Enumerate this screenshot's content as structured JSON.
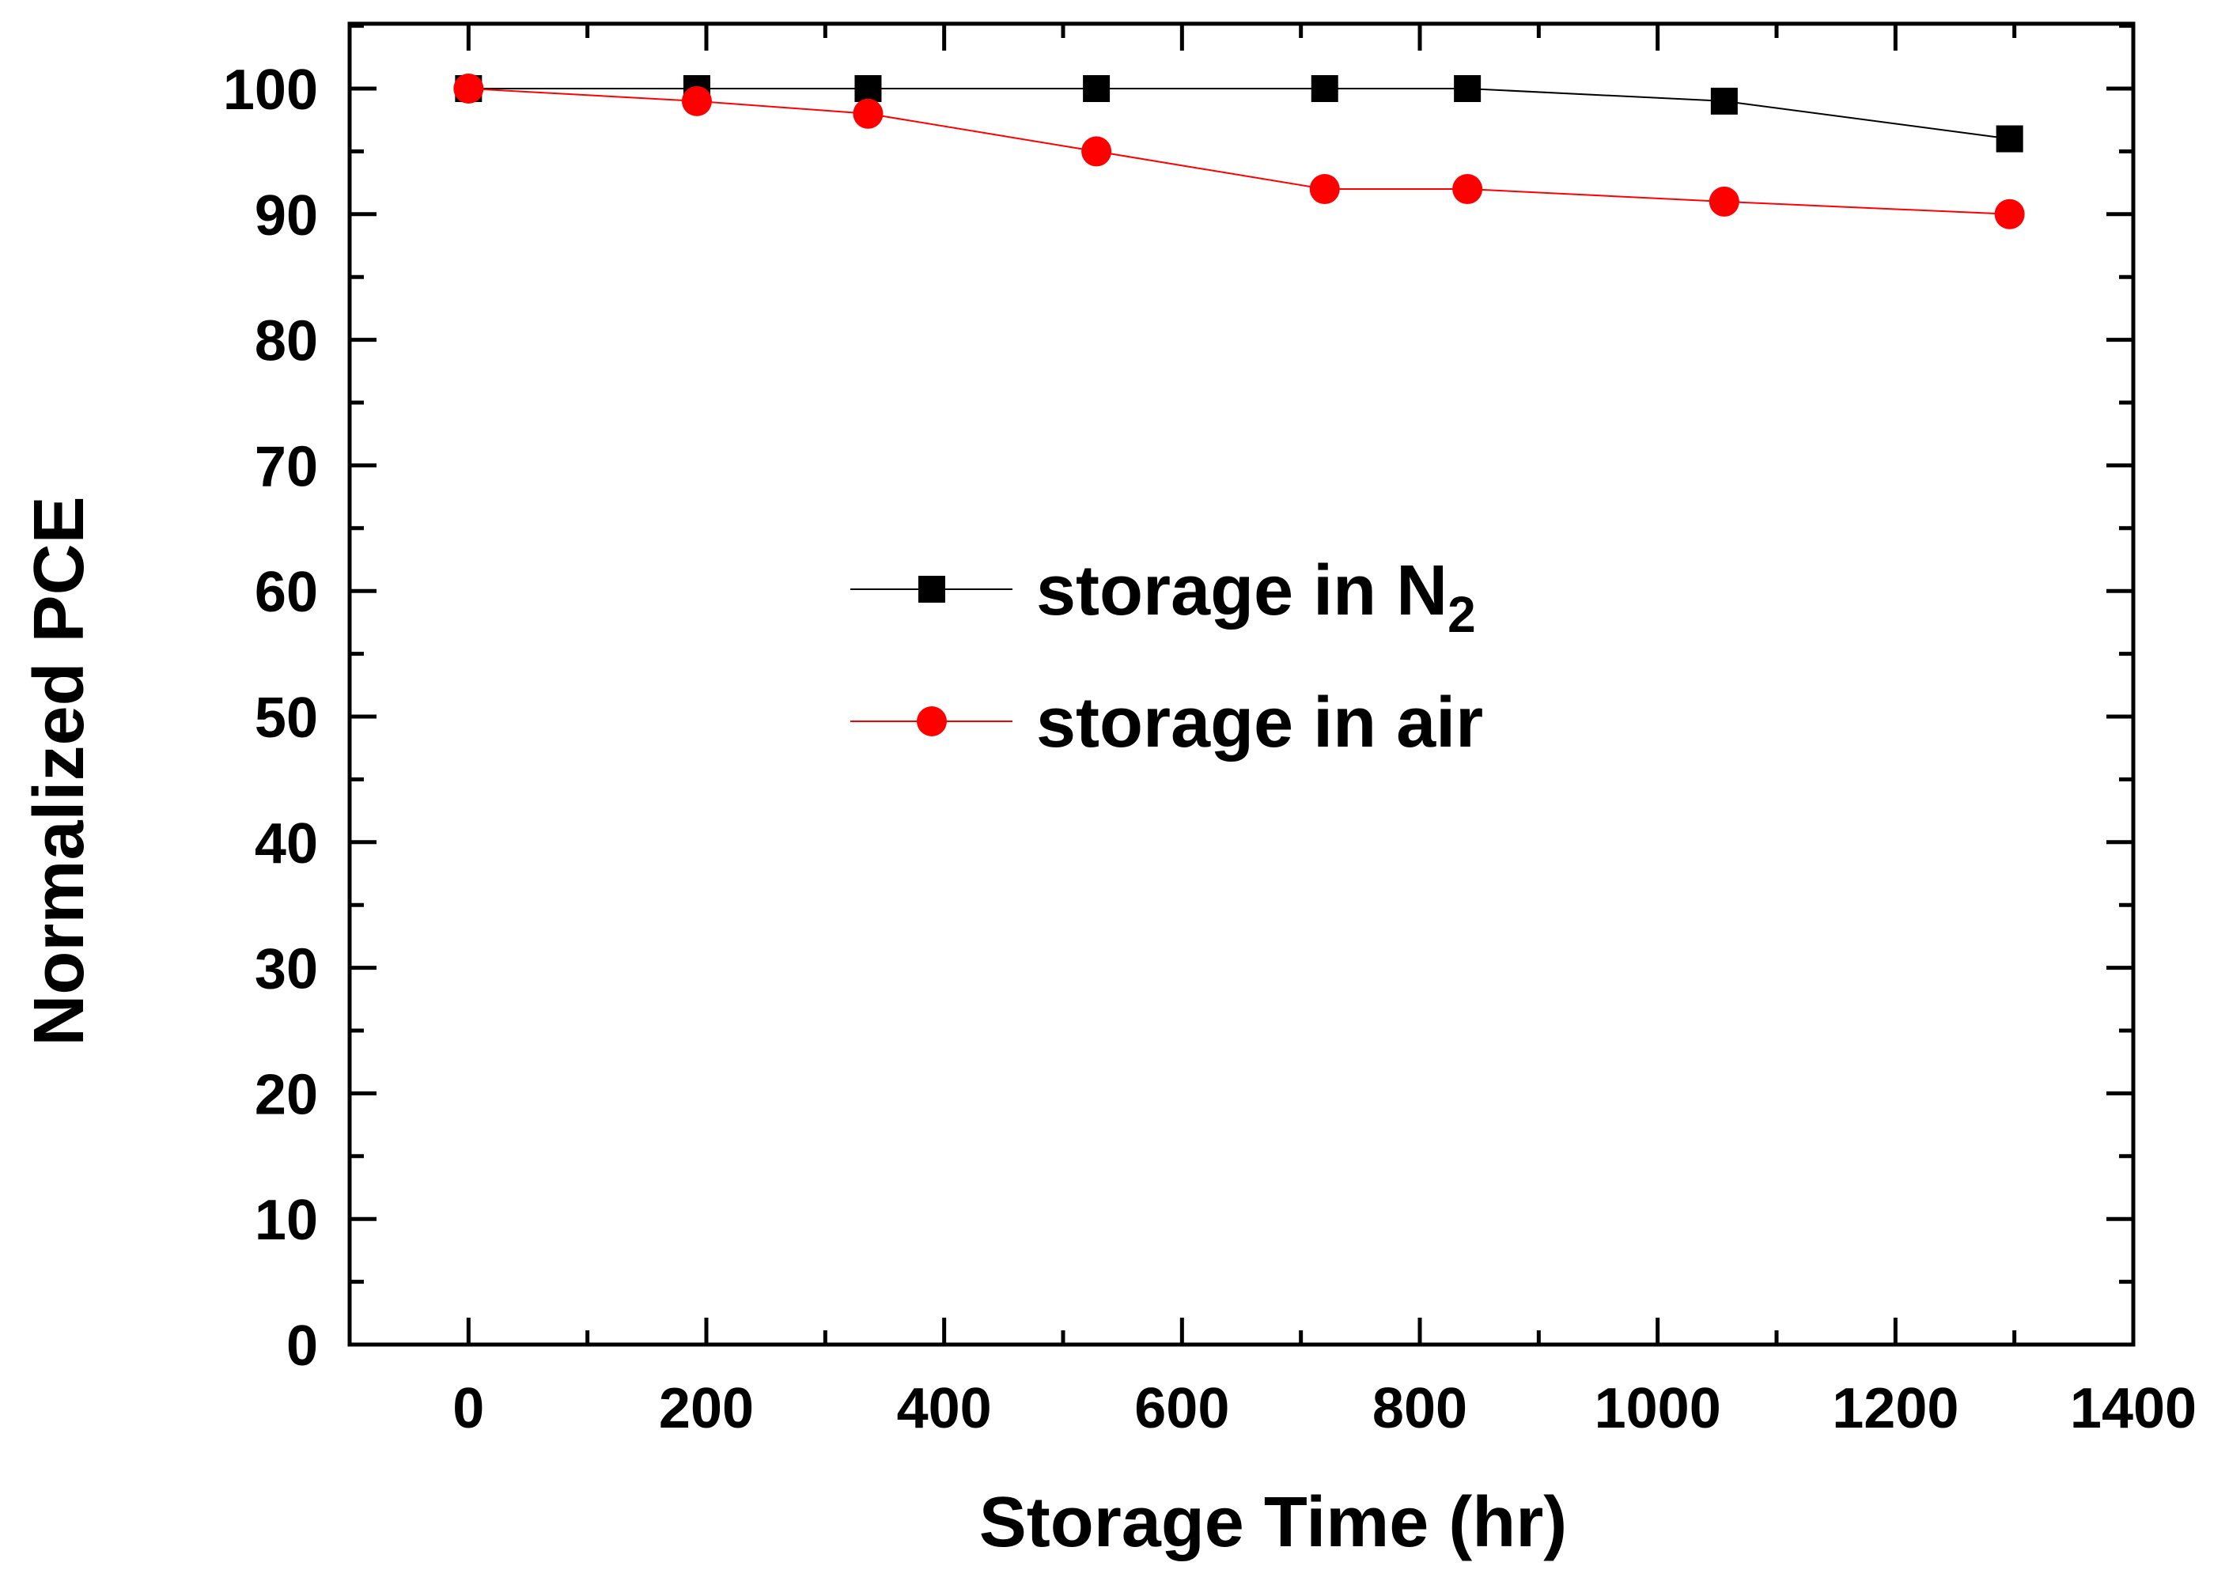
{
  "chart_data": {
    "type": "line",
    "title": "",
    "xlabel": "Storage Time (hr)",
    "ylabel": "Normalized PCE",
    "xlim": [
      -100,
      1400
    ],
    "ylim": [
      0,
      105
    ],
    "xticks": [
      0,
      200,
      400,
      600,
      800,
      1000,
      1200,
      1400
    ],
    "yticks": [
      0,
      10,
      20,
      30,
      40,
      50,
      60,
      70,
      80,
      90,
      100
    ],
    "xtick_labels": [
      "0",
      "200",
      "400",
      "600",
      "800",
      "1000",
      "1200",
      "1400"
    ],
    "ytick_labels": [
      "0",
      "10",
      "20",
      "30",
      "40",
      "50",
      "60",
      "70",
      "80",
      "90",
      "100"
    ],
    "grid": false,
    "legend_position": "center",
    "series": [
      {
        "name": "storage in N",
        "name_subscript": "2",
        "color": "#000000",
        "marker": "square",
        "x": [
          0,
          192,
          336,
          528,
          720,
          840,
          1056,
          1296
        ],
        "y": [
          100,
          100,
          100,
          100,
          100,
          100,
          99,
          96
        ]
      },
      {
        "name": "storage in air",
        "color": "#ff0000",
        "marker": "circle",
        "x": [
          0,
          192,
          336,
          528,
          720,
          840,
          1056,
          1296
        ],
        "y": [
          100,
          99,
          98,
          95,
          92,
          92,
          91,
          90
        ]
      }
    ]
  }
}
